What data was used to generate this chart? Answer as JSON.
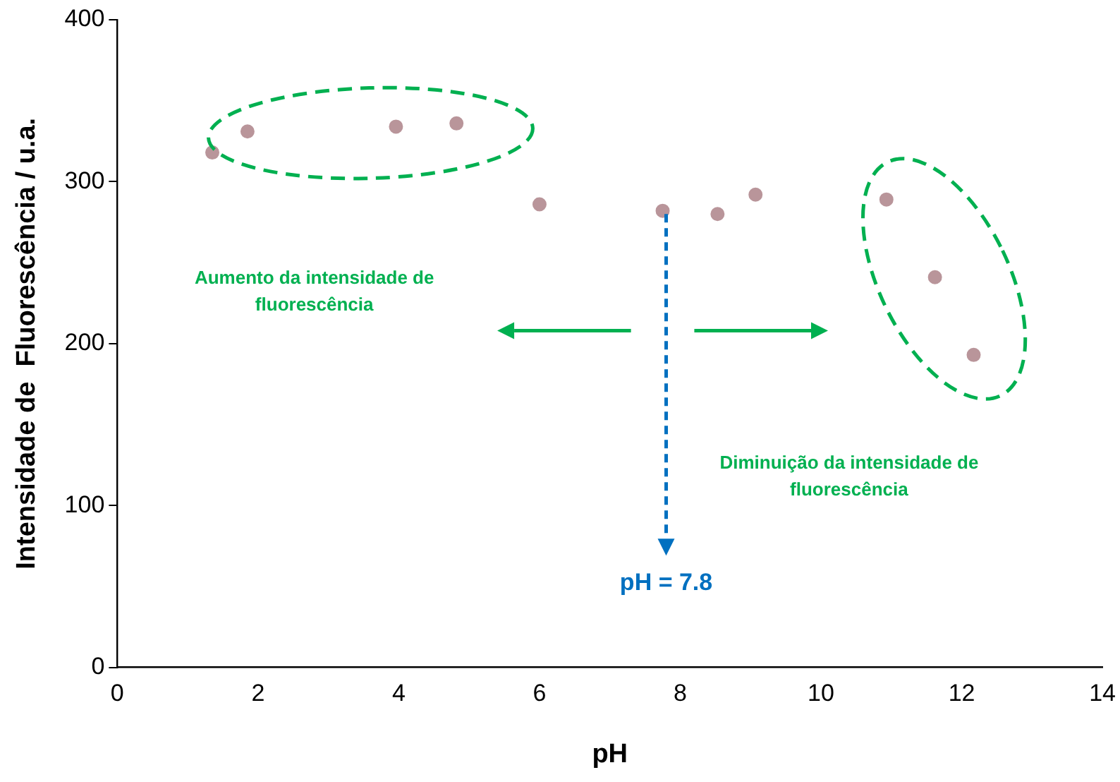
{
  "chart_data": {
    "type": "scatter",
    "xlabel": "pH",
    "ylabel": "Intensidade de  Fluorescência / u.a.",
    "x": [
      1.35,
      1.85,
      3.96,
      4.82,
      6.0,
      7.75,
      8.53,
      9.07,
      10.93,
      11.62,
      12.17
    ],
    "series": [
      {
        "color": "#b9959a",
        "values": [
          318,
          331,
          334,
          336,
          286,
          282,
          280,
          292,
          289,
          241,
          193
        ]
      }
    ],
    "xlim": [
      0,
      14
    ],
    "xticks": [
      0,
      2,
      4,
      6,
      8,
      10,
      12,
      14
    ],
    "ylim": [
      0,
      400
    ],
    "yticks": [
      0,
      100,
      200,
      300,
      400
    ],
    "grid": false,
    "legend": false,
    "marker": "circle",
    "annotations": [
      "Aumento da intensidade de fluorescência",
      "Diminuição da intensidade de fluorescência",
      "pH = 7.8"
    ]
  }
}
